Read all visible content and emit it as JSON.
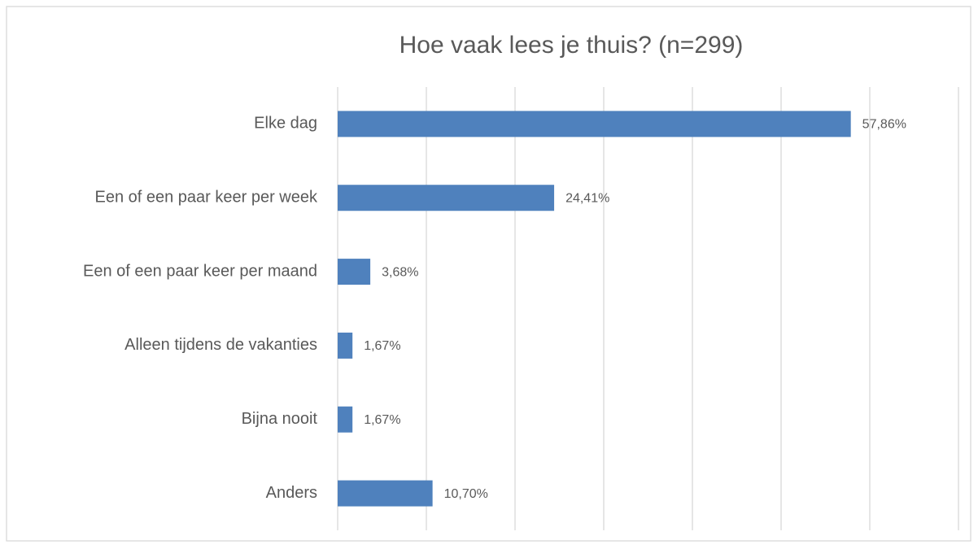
{
  "chart_data": {
    "type": "bar",
    "orientation": "horizontal",
    "title": "Hoe vaak lees je thuis? (n=299)",
    "categories": [
      "Elke dag",
      "Een of een paar keer per week",
      "Een of een paar keer per maand",
      "Alleen tijdens de vakanties",
      "Bijna nooit",
      "Anders"
    ],
    "values": [
      57.86,
      24.41,
      3.68,
      1.67,
      1.67,
      10.7
    ],
    "value_labels": [
      "57,86%",
      "24,41%",
      "3,68%",
      "1,67%",
      "1,67%",
      "10,70%"
    ],
    "color": "#4f81bd",
    "xlim": [
      0,
      70
    ],
    "xticks": [
      0,
      10,
      20,
      30,
      40,
      50,
      60,
      70
    ],
    "grid": true
  }
}
